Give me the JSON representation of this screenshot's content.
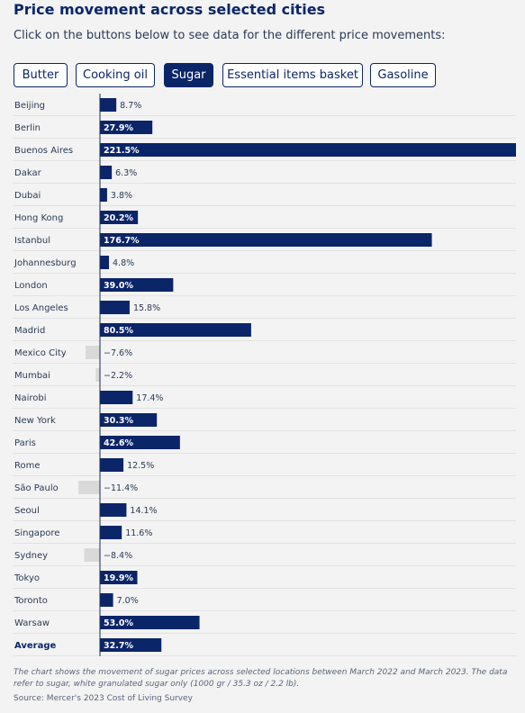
{
  "header": {
    "title": "Price movement across selected cities",
    "subtitle": "Click on the buttons below to see data for the different price movements:"
  },
  "buttons": [
    {
      "label": "Butter",
      "active": false
    },
    {
      "label": "Cooking oil",
      "active": false
    },
    {
      "label": "Sugar",
      "active": true
    },
    {
      "label": "Essential items basket",
      "active": false
    },
    {
      "label": "Gasoline",
      "active": false
    }
  ],
  "colors": {
    "positive_bar": "#0b2569",
    "negative_bar": "#d9d9d9",
    "active_button": "#0b2569",
    "background": "#f3f3f3"
  },
  "chart_data": {
    "type": "bar",
    "orientation": "horizontal",
    "unit": "%",
    "categories": [
      "Beijing",
      "Berlin",
      "Buenos Aires",
      "Dakar",
      "Dubai",
      "Hong Kong",
      "Istanbul",
      "Johannesburg",
      "London",
      "Los Angeles",
      "Madrid",
      "Mexico City",
      "Mumbai",
      "Nairobi",
      "New York",
      "Paris",
      "Rome",
      "São Paulo",
      "Seoul",
      "Singapore",
      "Sydney",
      "Tokyo",
      "Toronto",
      "Warsaw",
      "Average"
    ],
    "values": [
      8.7,
      27.9,
      221.5,
      6.3,
      3.8,
      20.2,
      176.7,
      4.8,
      39.0,
      15.8,
      80.5,
      -7.6,
      -2.2,
      17.4,
      30.3,
      42.6,
      12.5,
      -11.4,
      14.1,
      11.6,
      -8.4,
      19.9,
      7.0,
      53.0,
      32.7
    ],
    "labels": [
      "8.7%",
      "27.9%",
      "221.5%",
      "6.3%",
      "3.8%",
      "20.2%",
      "176.7%",
      "4.8%",
      "39.0%",
      "15.8%",
      "80.5%",
      "−7.6%",
      "−2.2%",
      "17.4%",
      "30.3%",
      "42.6%",
      "12.5%",
      "−11.4%",
      "14.1%",
      "11.6%",
      "−8.4%",
      "19.9%",
      "7.0%",
      "53.0%",
      "32.7%"
    ],
    "bold_category": "Average"
  },
  "footer": {
    "note": "The chart shows the movement of sugar prices across selected locations between March 2022 and March 2023. The data refer to sugar, white granulated sugar only (1000 gr / 35.3 oz / 2.2 lb).",
    "source": "Source: Mercer's 2023 Cost of Living Survey"
  }
}
